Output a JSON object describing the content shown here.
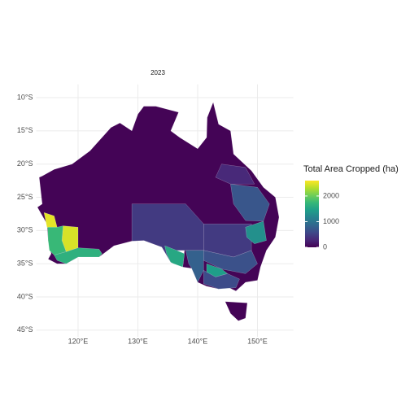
{
  "chart_data": {
    "type": "choropleth",
    "title": "2023",
    "legend_title": "Total Area Cropped (ha)",
    "values": [
      20,
      15,
      2500,
      2450,
      1750,
      1650,
      450,
      1550,
      800,
      1450,
      600,
      450,
      1300,
      650,
      700,
      300
    ],
    "colorscale": [
      "#440154",
      "#482878",
      "#3e4989",
      "#31688e",
      "#26828e",
      "#1f9e89",
      "#35b779",
      "#6ece58",
      "#b5de2b",
      "#fde725"
    ],
    "colorbar_lim": [
      0,
      2600
    ],
    "colorbar_ticks": [
      0,
      1000,
      2000
    ],
    "xlim": [
      113,
      156
    ],
    "ylim": [
      -8,
      -46
    ],
    "xticks": [
      {
        "value": 120,
        "label": "120°E"
      },
      {
        "value": 130,
        "label": "130°E"
      },
      {
        "value": 140,
        "label": "140°E"
      },
      {
        "value": 150,
        "label": "150°E"
      }
    ],
    "yticks": [
      {
        "value": -10,
        "label": "10°S"
      },
      {
        "value": -15,
        "label": "15°S"
      },
      {
        "value": -20,
        "label": "20°S"
      },
      {
        "value": -25,
        "label": "25°S"
      },
      {
        "value": -30,
        "label": "30°S"
      },
      {
        "value": -35,
        "label": "35°S"
      },
      {
        "value": -40,
        "label": "40°S"
      },
      {
        "value": -45,
        "label": "45°S"
      }
    ],
    "grid": true
  }
}
